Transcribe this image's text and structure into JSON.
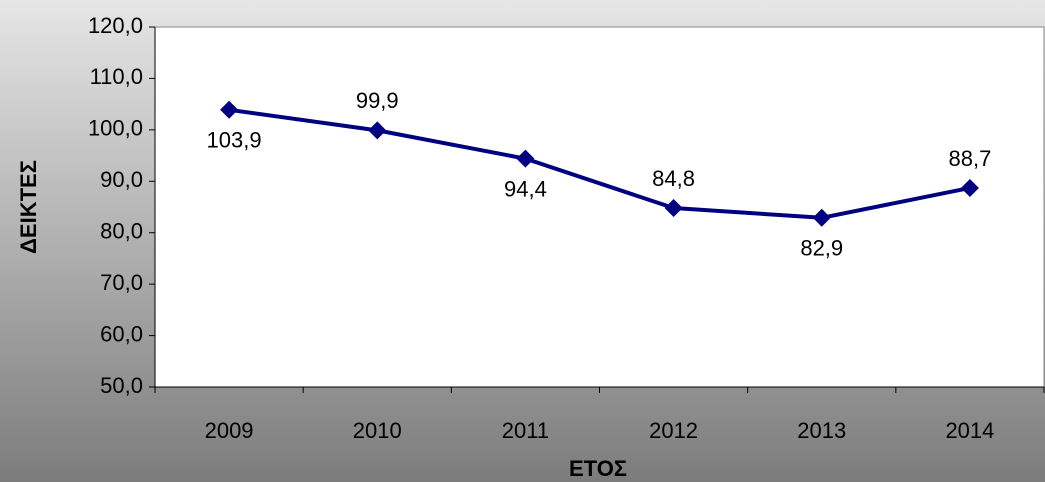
{
  "chart_data": {
    "type": "line",
    "xlabel": "ΕΤΟΣ",
    "ylabel": "ΔΕΙΚΤΕΣ",
    "categories": [
      "2009",
      "2010",
      "2011",
      "2012",
      "2013",
      "2014"
    ],
    "series": [
      {
        "name": "ΔΕΙΚΤΕΣ",
        "color": "#000080",
        "values": [
          103.9,
          99.9,
          94.4,
          84.8,
          82.9,
          88.7
        ],
        "value_labels": [
          "103,9",
          "99,9",
          "94,4",
          "84,8",
          "82,9",
          "88,7"
        ]
      }
    ],
    "ylim": [
      50,
      120
    ],
    "yticks": [
      {
        "value": 50,
        "label": "50,0"
      },
      {
        "value": 60,
        "label": "60,0"
      },
      {
        "value": 70,
        "label": "70,0"
      },
      {
        "value": 80,
        "label": "80,0"
      },
      {
        "value": 90,
        "label": "90,0"
      },
      {
        "value": 100,
        "label": "100,0"
      },
      {
        "value": 110,
        "label": "110,0"
      },
      {
        "value": 120,
        "label": "120,0"
      }
    ],
    "grid": false,
    "legend": false
  }
}
